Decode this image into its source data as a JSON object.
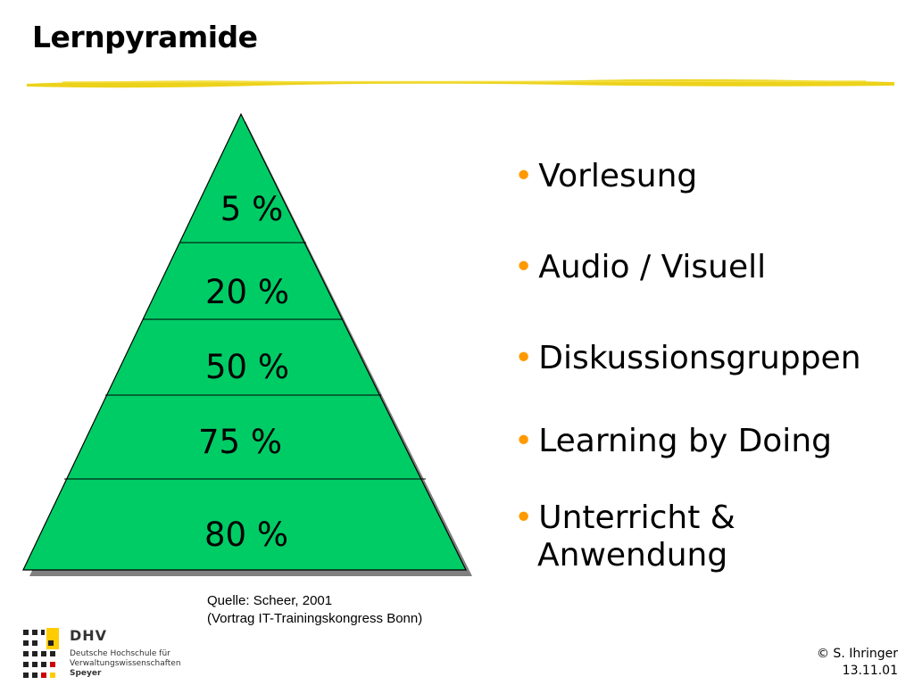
{
  "slide": {
    "title": "Lernpyramide",
    "accent_color": "#ecd21a",
    "pyramid_fill": "#00cc66",
    "pyramid_levels": [
      "5 %",
      "20 %",
      "50 %",
      "75 %",
      "80 %"
    ],
    "bullets": [
      [
        "Vorlesung"
      ],
      [
        "Audio / Visuell"
      ],
      [
        "Diskussionsgruppen"
      ],
      [
        "Learning by Doing"
      ],
      [
        "Unterricht &",
        "Anwendung"
      ]
    ],
    "bullet_glyph": "•",
    "bullet_color": "#ff9900",
    "source": {
      "line1": "Quelle: Scheer, 2001",
      "line2": "(Vortrag IT-Trainingskongress Bonn)"
    },
    "logo": {
      "abbr": "DHV",
      "line1": "Deutsche Hochschule für",
      "line2": "Verwaltungswissenschaften",
      "line3": "Speyer"
    },
    "footer": {
      "author": "© S. Ihringer",
      "date": "13.11.01"
    }
  }
}
